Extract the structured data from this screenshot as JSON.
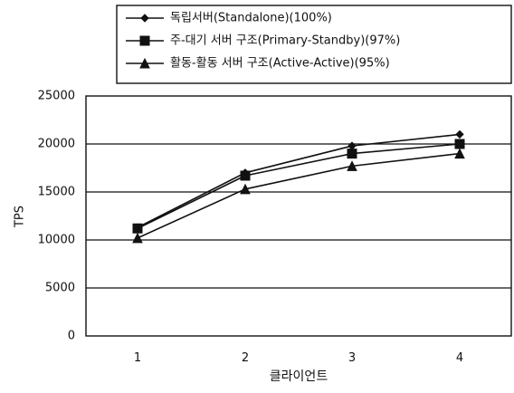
{
  "chart_data": {
    "type": "line",
    "title": "",
    "xlabel": "클라이언트",
    "ylabel": "TPS",
    "x": [
      1,
      2,
      3,
      4
    ],
    "x_ticks": [
      "1",
      "2",
      "3",
      "4"
    ],
    "ylim": [
      0,
      25000
    ],
    "y_ticks": [
      "0",
      "5000",
      "10000",
      "15000",
      "20000",
      "25000"
    ],
    "grid": "horizontal",
    "legend_position": "top-right",
    "series": [
      {
        "name": "독립서버(Standalone)(100%)",
        "marker": "diamond",
        "values": [
          11300,
          17000,
          19800,
          21000
        ]
      },
      {
        "name": "주-대기 서버 구조(Primary-Standby)(97%)",
        "marker": "square",
        "values": [
          11200,
          16700,
          19000,
          20000
        ]
      },
      {
        "name": "활동-활동 서버 구조(Active-Active)(95%)",
        "marker": "triangle",
        "values": [
          10200,
          15300,
          17700,
          19000
        ]
      }
    ]
  }
}
